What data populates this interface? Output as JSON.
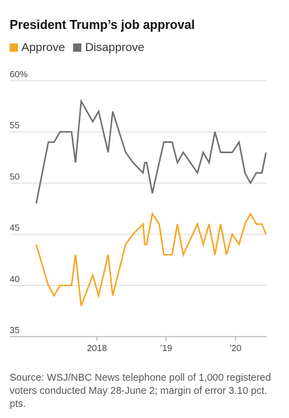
{
  "chart_data": {
    "type": "line",
    "title": "President Trump’s job approval",
    "xlabel": "",
    "ylabel": "",
    "ylim": [
      35,
      60
    ],
    "xlim": [
      "2017-01-15",
      "2020-06-15"
    ],
    "y_ticks": [
      {
        "value": 60,
        "label": "60%"
      },
      {
        "value": 55,
        "label": "55"
      },
      {
        "value": 50,
        "label": "50"
      },
      {
        "value": 45,
        "label": "45"
      },
      {
        "value": 40,
        "label": "40"
      },
      {
        "value": 35,
        "label": "35"
      }
    ],
    "x_ticks": [
      {
        "date": "2018-01-01",
        "label": "2018"
      },
      {
        "date": "2019-01-01",
        "label": "’19"
      },
      {
        "date": "2020-01-01",
        "label": "’20"
      }
    ],
    "grid": true,
    "legend_position": "top-left",
    "series": [
      {
        "name": "Approve",
        "color": "#f5a623",
        "points": [
          [
            "2017-02-15",
            44
          ],
          [
            "2017-04-20",
            40
          ],
          [
            "2017-05-20",
            39
          ],
          [
            "2017-06-20",
            40
          ],
          [
            "2017-07-20",
            40
          ],
          [
            "2017-08-20",
            40
          ],
          [
            "2017-09-10",
            43
          ],
          [
            "2017-10-10",
            38
          ],
          [
            "2017-12-10",
            41
          ],
          [
            "2018-01-10",
            39
          ],
          [
            "2018-03-01",
            43
          ],
          [
            "2018-03-25",
            39
          ],
          [
            "2018-06-01",
            44
          ],
          [
            "2018-07-10",
            45
          ],
          [
            "2018-09-01",
            46
          ],
          [
            "2018-09-10",
            44
          ],
          [
            "2018-09-20",
            44
          ],
          [
            "2018-10-20",
            47
          ],
          [
            "2018-11-25",
            46
          ],
          [
            "2018-12-20",
            43
          ],
          [
            "2019-02-01",
            43
          ],
          [
            "2019-03-01",
            46
          ],
          [
            "2019-04-01",
            43
          ],
          [
            "2019-06-15",
            46
          ],
          [
            "2019-07-15",
            44
          ],
          [
            "2019-08-15",
            46
          ],
          [
            "2019-09-15",
            43
          ],
          [
            "2019-10-15",
            46
          ],
          [
            "2019-11-15",
            43
          ],
          [
            "2019-12-15",
            45
          ],
          [
            "2020-01-20",
            44
          ],
          [
            "2020-02-20",
            46
          ],
          [
            "2020-03-20",
            47
          ],
          [
            "2020-04-20",
            46
          ],
          [
            "2020-05-20",
            46
          ],
          [
            "2020-06-10",
            45
          ]
        ]
      },
      {
        "name": "Disapprove",
        "color": "#6e6e6e",
        "points": [
          [
            "2017-02-15",
            48
          ],
          [
            "2017-04-20",
            54
          ],
          [
            "2017-05-20",
            54
          ],
          [
            "2017-06-20",
            55
          ],
          [
            "2017-07-20",
            55
          ],
          [
            "2017-08-20",
            55
          ],
          [
            "2017-09-10",
            52
          ],
          [
            "2017-10-10",
            58
          ],
          [
            "2017-12-10",
            56
          ],
          [
            "2018-01-10",
            57
          ],
          [
            "2018-03-01",
            53
          ],
          [
            "2018-03-25",
            57
          ],
          [
            "2018-06-01",
            53
          ],
          [
            "2018-07-10",
            52
          ],
          [
            "2018-09-01",
            51
          ],
          [
            "2018-09-10",
            52
          ],
          [
            "2018-09-20",
            52
          ],
          [
            "2018-10-20",
            49
          ],
          [
            "2018-11-25",
            52
          ],
          [
            "2018-12-20",
            54
          ],
          [
            "2019-02-01",
            54
          ],
          [
            "2019-03-01",
            52
          ],
          [
            "2019-04-01",
            53
          ],
          [
            "2019-06-15",
            51
          ],
          [
            "2019-07-15",
            53
          ],
          [
            "2019-08-15",
            52
          ],
          [
            "2019-09-15",
            55
          ],
          [
            "2019-10-15",
            53
          ],
          [
            "2019-11-15",
            53
          ],
          [
            "2019-12-15",
            53
          ],
          [
            "2020-01-20",
            54
          ],
          [
            "2020-02-20",
            51
          ],
          [
            "2020-03-20",
            50
          ],
          [
            "2020-04-20",
            51
          ],
          [
            "2020-05-20",
            51
          ],
          [
            "2020-06-10",
            53
          ]
        ]
      }
    ]
  },
  "source": "Source: WSJ/NBC News telephone poll of 1,000 registered voters conducted May 28-June 2; margin of error 3.10 pct. pts."
}
